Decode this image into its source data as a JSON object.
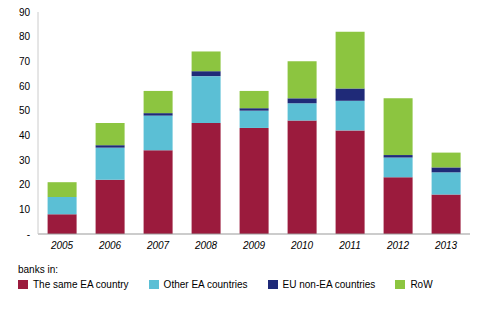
{
  "chart_data": {
    "type": "bar",
    "stacked": true,
    "grid": false,
    "legend": "bottom",
    "legend_title": "banks in:",
    "categories": [
      "2005",
      "2006",
      "2007",
      "2008",
      "2009",
      "2010",
      "2011",
      "2012",
      "2013"
    ],
    "series": [
      {
        "name": "The same EA country",
        "color": "#9b1b3d",
        "values": [
          8,
          22,
          34,
          45,
          43,
          46,
          42,
          23,
          16
        ]
      },
      {
        "name": "Other EA countries",
        "color": "#5bbfd5",
        "values": [
          7,
          13,
          14,
          19,
          7,
          7,
          12,
          8,
          9
        ]
      },
      {
        "name": "EU non-EA countries",
        "color": "#1f2a78",
        "values": [
          0,
          1,
          1,
          2,
          1,
          2,
          5,
          1,
          2
        ]
      },
      {
        "name": "RoW",
        "color": "#8cc540",
        "values": [
          6,
          9,
          9,
          8,
          7,
          15,
          23,
          23,
          6
        ]
      }
    ],
    "ylim": [
      0,
      90
    ],
    "yticks": [
      {
        "value": 0,
        "label": "-"
      },
      10,
      20,
      30,
      40,
      50,
      60,
      70,
      80,
      90
    ]
  }
}
